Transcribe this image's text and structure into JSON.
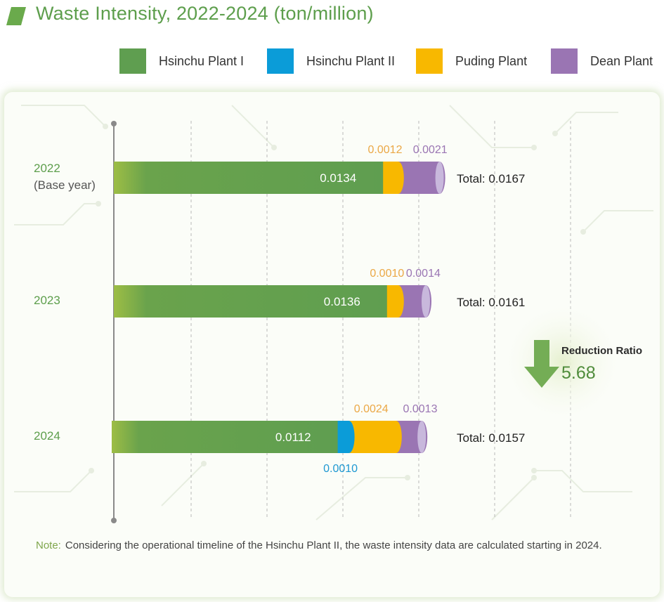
{
  "title": "Waste Intensity, 2022-2024 (ton/million)",
  "colors": {
    "hsinchu_1": "#5f9e50",
    "hsinchu_2": "#0b9cd8",
    "puding": "#f8b800",
    "dean": "#9a75b3",
    "year_text": "#5d9e4c"
  },
  "legend": [
    {
      "label": "Hsinchu Plant I",
      "color": "#5f9e50"
    },
    {
      "label": "Hsinchu Plant II",
      "color": "#0b9cd8"
    },
    {
      "label": "Puding Plant",
      "color": "#f8b800"
    },
    {
      "label": "Dean Plant",
      "color": "#9a75b3"
    }
  ],
  "chart_data": {
    "type": "bar",
    "orientation": "horizontal",
    "stacked": true,
    "title": "Waste Intensity, 2022-2024 (ton/million)",
    "categories": [
      "2022",
      "2023",
      "2024"
    ],
    "category_sublabels": [
      "(Base year)",
      "",
      ""
    ],
    "series": [
      {
        "name": "Hsinchu Plant I",
        "values": [
          0.0134,
          0.0136,
          0.0112
        ],
        "labels": [
          "0.0134",
          "0.0136",
          "0.0112"
        ]
      },
      {
        "name": "Hsinchu Plant II",
        "values": [
          0,
          0,
          0.001
        ],
        "labels": [
          "",
          "",
          "0.0010"
        ]
      },
      {
        "name": "Puding Plant",
        "values": [
          0.0012,
          0.001,
          0.0024
        ],
        "labels": [
          "0.0012",
          "0.0010",
          "0.0024"
        ]
      },
      {
        "name": "Dean Plant",
        "values": [
          0.0021,
          0.0014,
          0.0013
        ],
        "labels": [
          "0.0021",
          "0.0014",
          "0.0013"
        ]
      }
    ],
    "totals": [
      "Total: 0.0167",
      "Total: 0.0161",
      "Total: 0.0157"
    ],
    "reduction": {
      "label": "Reduction Ratio",
      "value": "5.68"
    },
    "grid": true,
    "legend_position": "top"
  },
  "note": {
    "label": "Note:",
    "text": "Considering the operational timeline of the Hsinchu Plant II, the waste intensity data are calculated starting in 2024."
  }
}
